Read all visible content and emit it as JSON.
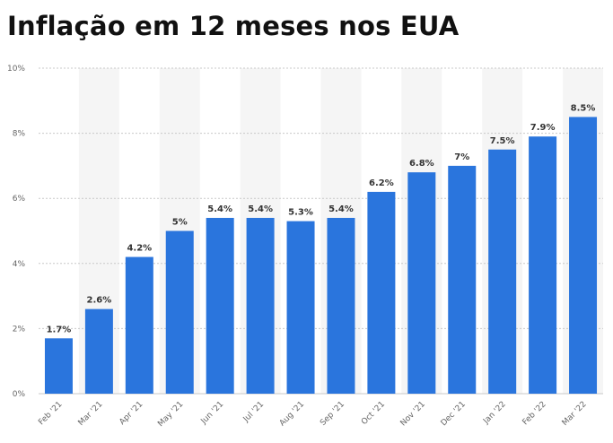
{
  "title": "Inflação em 12 meses nos EUA",
  "colors": {
    "bar": "#2a75dd",
    "band": "#f5f5f5",
    "grid": "#c8c8c8",
    "axis": "#666666"
  },
  "chart_data": {
    "type": "bar",
    "title": "Inflação em 12 meses nos EUA",
    "xlabel": "",
    "ylabel": "",
    "categories": [
      "Feb '21",
      "Mar '21",
      "Apr '21",
      "May '21",
      "Jun '21",
      "Jul '21",
      "Aug '21",
      "Sep '21",
      "Oct '21",
      "Nov '21",
      "Dec '21",
      "Jan '22",
      "Feb '22",
      "Mar '22"
    ],
    "values": [
      1.7,
      2.6,
      4.2,
      5,
      5.4,
      5.4,
      5.3,
      5.4,
      6.2,
      6.8,
      7,
      7.5,
      7.9,
      8.5
    ],
    "data_labels": [
      "1.7%",
      "2.6%",
      "4.2%",
      "5%",
      "5.4%",
      "5.4%",
      "5.3%",
      "5.4%",
      "6.2%",
      "6.8%",
      "7%",
      "7.5%",
      "7.9%",
      "8.5%"
    ],
    "ylim": [
      0,
      10
    ],
    "yticks": [
      0,
      2,
      4,
      6,
      8,
      10
    ],
    "ytick_labels": [
      "0%",
      "2%",
      "4%",
      "6%",
      "8%",
      "10%"
    ],
    "grid": true,
    "legend": "none"
  }
}
